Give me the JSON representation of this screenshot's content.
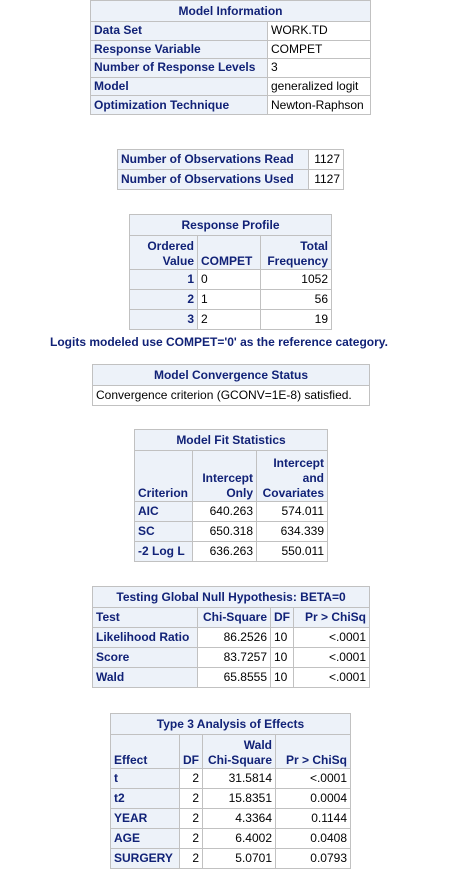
{
  "model_info": {
    "title": "Model Information",
    "rows": [
      {
        "label": "Data Set",
        "value": "WORK.TD"
      },
      {
        "label": "Response Variable",
        "value": "COMPET"
      },
      {
        "label": "Number of Response Levels",
        "value": "3"
      },
      {
        "label": "Model",
        "value": "generalized logit"
      },
      {
        "label": "Optimization Technique",
        "value": "Newton-Raphson"
      }
    ]
  },
  "observations": {
    "rows": [
      {
        "label": "Number of Observations Read",
        "value": "1127"
      },
      {
        "label": "Number of Observations Used",
        "value": "1127"
      }
    ]
  },
  "response_profile": {
    "title": "Response Profile",
    "headers": {
      "ordered_1": "Ordered",
      "ordered_2": "Value",
      "compet": "COMPET",
      "total_1": "Total",
      "total_2": "Frequency"
    },
    "rows": [
      {
        "ordered": "1",
        "compet": "0",
        "freq": "1052"
      },
      {
        "ordered": "2",
        "compet": "1",
        "freq": "56"
      },
      {
        "ordered": "3",
        "compet": "2",
        "freq": "19"
      }
    ]
  },
  "logits_note": "Logits modeled use COMPET='0' as the reference category.",
  "convergence": {
    "title": "Model Convergence Status",
    "message": "Convergence criterion (GCONV=1E-8) satisfied."
  },
  "fit_stats": {
    "title": "Model Fit Statistics",
    "headers": {
      "criterion": "Criterion",
      "intercept_only_1": "Intercept",
      "intercept_only_2": "Only",
      "cov_1": "Intercept",
      "cov_2": "and",
      "cov_3": "Covariates"
    },
    "rows": [
      {
        "criterion": "AIC",
        "intercept_only": "640.263",
        "covariates": "574.011"
      },
      {
        "criterion": "SC",
        "intercept_only": "650.318",
        "covariates": "634.339"
      },
      {
        "criterion": "-2 Log L",
        "intercept_only": "636.263",
        "covariates": "550.011"
      }
    ]
  },
  "global_null": {
    "title": "Testing Global Null Hypothesis: BETA=0",
    "headers": {
      "test": "Test",
      "chisq": "Chi-Square",
      "df": "DF",
      "p": "Pr > ChiSq"
    },
    "rows": [
      {
        "test": "Likelihood Ratio",
        "chisq": "86.2526",
        "df": "10",
        "p": "<.0001"
      },
      {
        "test": "Score",
        "chisq": "83.7257",
        "df": "10",
        "p": "<.0001"
      },
      {
        "test": "Wald",
        "chisq": "65.8555",
        "df": "10",
        "p": "<.0001"
      }
    ]
  },
  "type3": {
    "title": "Type 3 Analysis of Effects",
    "headers": {
      "effect": "Effect",
      "df": "DF",
      "wald_1": "Wald",
      "wald_2": "Chi-Square",
      "p": "Pr > ChiSq"
    },
    "rows": [
      {
        "effect": "t",
        "df": "2",
        "chisq": "31.5814",
        "p": "<.0001"
      },
      {
        "effect": "t2",
        "df": "2",
        "chisq": "15.8351",
        "p": "0.0004"
      },
      {
        "effect": "YEAR",
        "df": "2",
        "chisq": "4.3364",
        "p": "0.1144"
      },
      {
        "effect": "AGE",
        "df": "2",
        "chisq": "6.4002",
        "p": "0.0408"
      },
      {
        "effect": "SURGERY",
        "df": "2",
        "chisq": "5.0701",
        "p": "0.0793"
      }
    ]
  }
}
